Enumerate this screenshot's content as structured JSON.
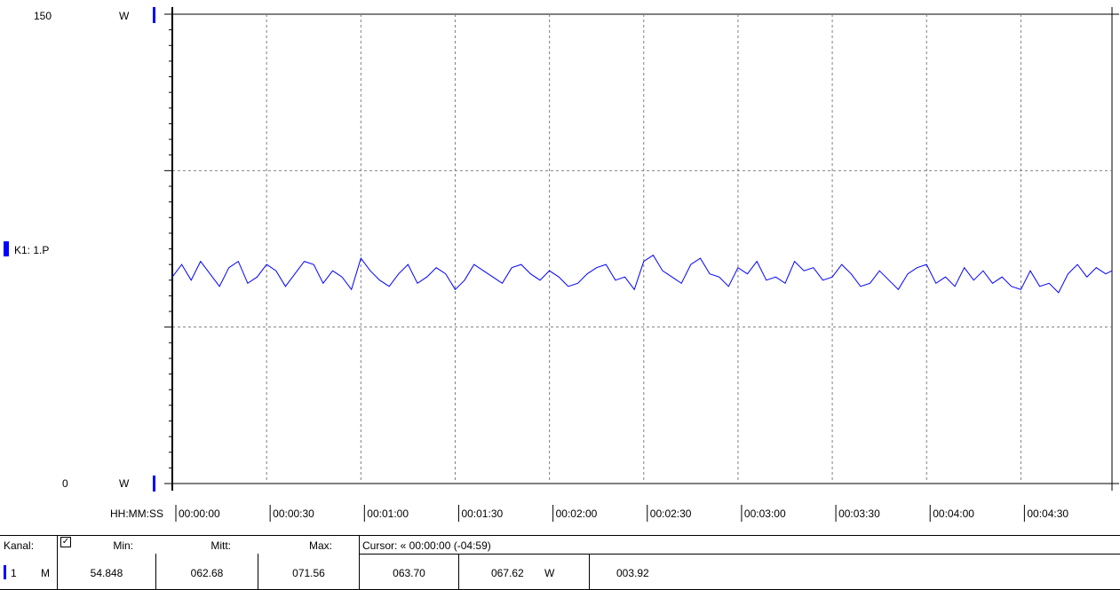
{
  "colors": {
    "series": "#0000ff",
    "grid": "#808080",
    "frame": "#000000"
  },
  "chart_data": {
    "type": "line",
    "y_top_label": "150",
    "y_bottom_label": "0",
    "unit_top": "W",
    "unit_bottom": "W",
    "ylim": [
      0,
      150
    ],
    "channel_label": "K1: 1.P",
    "x_axis_label": "HH:MM:SS",
    "x_tick_labels": [
      "00:00:00",
      "00:00:30",
      "00:01:00",
      "00:01:30",
      "00:02:00",
      "00:02:30",
      "00:03:00",
      "00:03:30",
      "00:04:00",
      "00:04:30"
    ],
    "x_range_seconds": [
      0,
      299
    ],
    "grid": true,
    "series": [
      {
        "x": [
          0,
          3,
          6,
          9,
          12,
          15,
          18,
          21,
          24,
          27,
          30,
          33,
          36,
          39,
          42,
          45,
          48,
          51,
          54,
          57,
          60,
          63,
          66,
          69,
          72,
          75,
          78,
          81,
          84,
          87,
          90,
          93,
          96,
          99,
          102,
          105,
          108,
          111,
          114,
          117,
          120,
          123,
          126,
          129,
          132,
          135,
          138,
          141,
          144,
          147,
          150,
          153,
          156,
          159,
          162,
          165,
          168,
          171,
          174,
          177,
          180,
          183,
          186,
          189,
          192,
          195,
          198,
          201,
          204,
          207,
          210,
          213,
          216,
          219,
          222,
          225,
          228,
          231,
          234,
          237,
          240,
          243,
          246,
          249,
          252,
          255,
          258,
          261,
          264,
          267,
          270,
          273,
          276,
          279,
          282,
          285,
          288,
          291,
          294,
          297,
          299
        ],
        "values": [
          66,
          70,
          65,
          71,
          67,
          63,
          69,
          71,
          64,
          66,
          70,
          68,
          63,
          67,
          71,
          70,
          64,
          68,
          66,
          62,
          72,
          68,
          65,
          63,
          67,
          70,
          64,
          66,
          69,
          67,
          62,
          65,
          70,
          68,
          66,
          64,
          69,
          70,
          67,
          65,
          68,
          66,
          63,
          64,
          67,
          69,
          70,
          65,
          66,
          62,
          71,
          73,
          68,
          66,
          64,
          70,
          72,
          67,
          66,
          63,
          69,
          67,
          71,
          65,
          66,
          64,
          71,
          68,
          69,
          65,
          66,
          70,
          67,
          63,
          64,
          68,
          65,
          62,
          67,
          69,
          70,
          64,
          66,
          63,
          69,
          65,
          68,
          64,
          66,
          63,
          62,
          68,
          63,
          64,
          61,
          67,
          70,
          66,
          69,
          67,
          68
        ]
      }
    ]
  },
  "table": {
    "kanal_label": "Kanal:",
    "checkbox_mark": "✓",
    "min_header": "Min:",
    "mitt_header": "Mitt:",
    "max_header": "Max:",
    "cursor_header": "Cursor: « 00:00:00 (-04:59)",
    "row": {
      "channel_number": "1",
      "mode": "M",
      "min": "54.848",
      "mitt": "062.68",
      "max": "071.56",
      "cursor_val1": "063.70",
      "cursor_val2": "067.62",
      "cursor_unit": "W",
      "cursor_val3": "003.92"
    }
  }
}
